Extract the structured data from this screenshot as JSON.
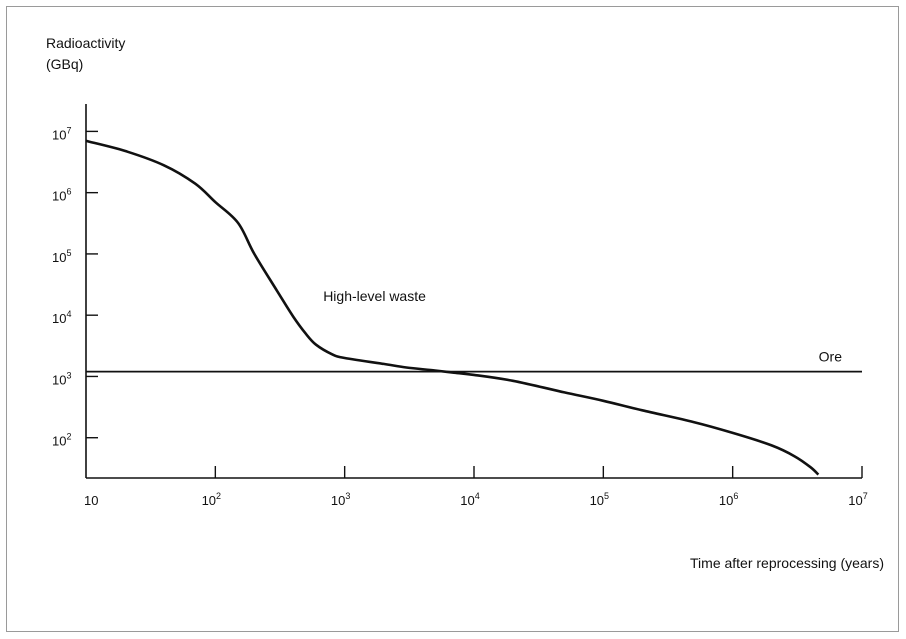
{
  "chart_data": {
    "type": "line",
    "title": "",
    "ylabel_line1": "Radioactivity",
    "ylabel_line2": "(GBq)",
    "xlabel": "Time after reprocessing (years)",
    "x_scale": "log",
    "y_scale": "log",
    "xlim": [
      10,
      10000000
    ],
    "ylim": [
      22,
      28000000
    ],
    "x_ticks": [
      {
        "base": "10",
        "exp": ""
      },
      {
        "base": "10",
        "exp": "2"
      },
      {
        "base": "10",
        "exp": "3"
      },
      {
        "base": "10",
        "exp": "4"
      },
      {
        "base": "10",
        "exp": "5"
      },
      {
        "base": "10",
        "exp": "6"
      },
      {
        "base": "10",
        "exp": "7"
      }
    ],
    "x_tick_values": [
      10,
      100,
      1000,
      10000,
      100000,
      1000000,
      10000000
    ],
    "y_ticks": [
      {
        "base": "10",
        "exp": "2"
      },
      {
        "base": "10",
        "exp": "3"
      },
      {
        "base": "10",
        "exp": "4"
      },
      {
        "base": "10",
        "exp": "5"
      },
      {
        "base": "10",
        "exp": "6"
      },
      {
        "base": "10",
        "exp": "7"
      }
    ],
    "y_tick_values": [
      100,
      1000,
      10000,
      100000,
      1000000,
      10000000
    ],
    "series": [
      {
        "name": "High-level waste",
        "color": "#111111",
        "x": [
          10,
          20,
          40,
          70,
          100,
          150,
          200,
          300,
          400,
          500,
          600,
          800,
          1000,
          2000,
          3000,
          5000,
          7000,
          10000,
          20000,
          50000,
          100000,
          200000,
          500000,
          1000000,
          2000000,
          3000000,
          4000000,
          4600000
        ],
        "y": [
          7000000,
          4800000,
          2800000,
          1400000,
          700000,
          320000,
          100000,
          25000,
          9500,
          5000,
          3300,
          2300,
          2000,
          1600,
          1400,
          1250,
          1150,
          1060,
          850,
          550,
          400,
          280,
          180,
          120,
          75,
          50,
          33,
          25
        ]
      },
      {
        "name": "Ore",
        "color": "#111111",
        "x": [
          10,
          10000000
        ],
        "y": [
          1200,
          1200
        ]
      }
    ],
    "annotations": [
      {
        "text": "High-level waste",
        "series": 0
      },
      {
        "text": "Ore",
        "series": 1
      }
    ],
    "grid": false,
    "legend": "none"
  }
}
